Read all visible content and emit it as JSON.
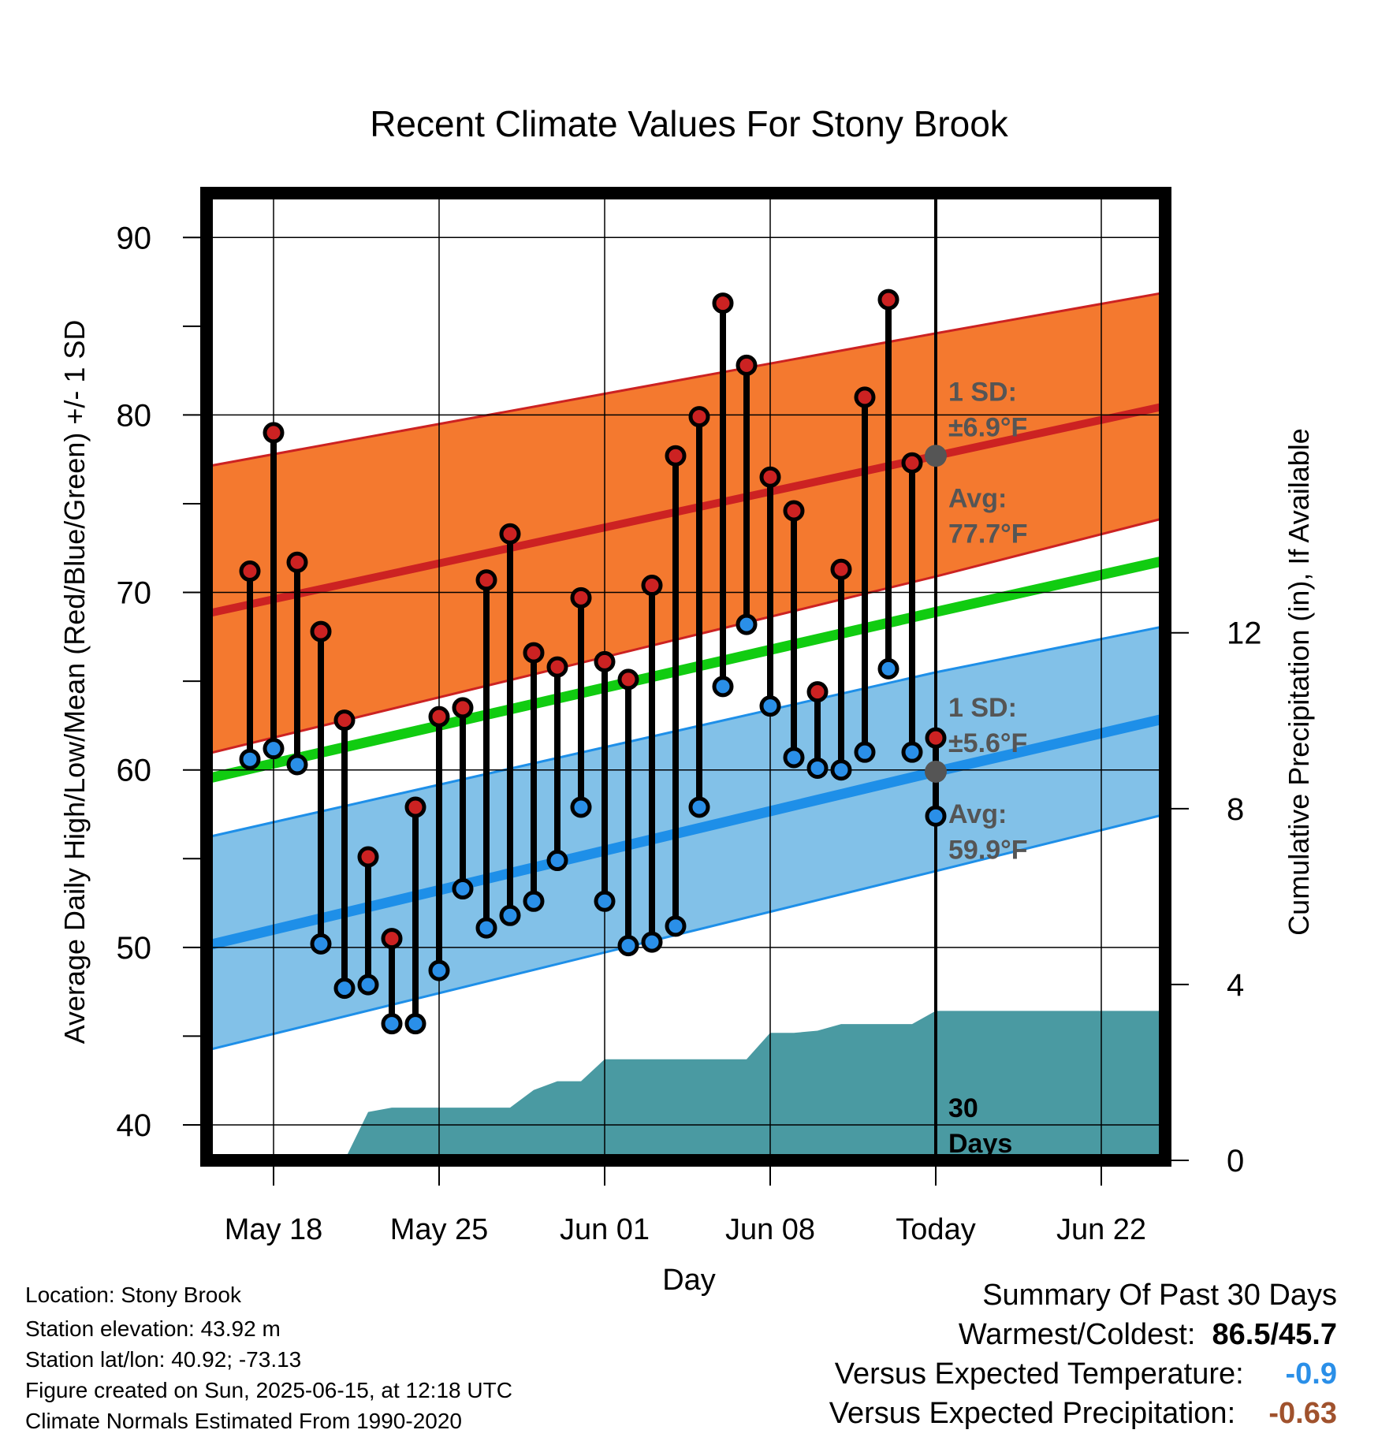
{
  "chart_data": {
    "type": "line",
    "title": "Recent Climate Values For Stony Brook",
    "xlabel": "Day",
    "ylabel": "Average Daily High/Low/Mean (Red/Blue/Green) +/- 1 SD",
    "y2label": "Cumulative Precipitation (in), If Available",
    "ylim": [
      38,
      92.5
    ],
    "y2lim": [
      0,
      22
    ],
    "y_ticks": [
      "40",
      "50",
      "60",
      "70",
      "80",
      "90"
    ],
    "y2_ticks": [
      "0",
      "4",
      "8",
      "12"
    ],
    "x_ticks": [
      "May 18",
      "May 25",
      "Jun 01",
      "Jun 08",
      "Today",
      "Jun 22"
    ],
    "x_dates": [
      "May 16",
      "May 17",
      "May 18",
      "May 19",
      "May 20",
      "May 21",
      "May 22",
      "May 23",
      "May 24",
      "May 25",
      "May 26",
      "May 27",
      "May 28",
      "May 29",
      "May 30",
      "May 31",
      "Jun 01",
      "Jun 02",
      "Jun 03",
      "Jun 04",
      "Jun 05",
      "Jun 06",
      "Jun 07",
      "Jun 08",
      "Jun 09",
      "Jun 10",
      "Jun 11",
      "Jun 12",
      "Jun 13",
      "Jun 14",
      "Jun 15",
      "Jun 16",
      "Jun 17",
      "Jun 18",
      "Jun 19",
      "Jun 20",
      "Jun 21",
      "Jun 22",
      "Jun 23",
      "Jun 24",
      "Jun 25"
    ],
    "today_date": "Jun 15",
    "grid": true,
    "series": [
      {
        "name": "High",
        "dates": [
          "May 17",
          "May 18",
          "May 19",
          "May 20",
          "May 21",
          "May 22",
          "May 23",
          "May 24",
          "May 25",
          "May 26",
          "May 27",
          "May 28",
          "May 29",
          "May 30",
          "May 31",
          "Jun 01",
          "Jun 02",
          "Jun 03",
          "Jun 04",
          "Jun 05",
          "Jun 06",
          "Jun 07",
          "Jun 08",
          "Jun 09",
          "Jun 10",
          "Jun 11",
          "Jun 12",
          "Jun 13",
          "Jun 14",
          "Jun 15"
        ],
        "values": [
          71.2,
          79.0,
          71.7,
          67.8,
          62.8,
          55.1,
          50.5,
          57.9,
          63.0,
          63.5,
          70.7,
          73.3,
          66.6,
          65.8,
          69.7,
          66.1,
          65.1,
          70.4,
          77.7,
          79.9,
          86.3,
          82.8,
          76.5,
          74.6,
          64.4,
          71.3,
          81.0,
          86.5,
          77.3,
          61.8
        ]
      },
      {
        "name": "Low",
        "dates": [
          "May 17",
          "May 18",
          "May 19",
          "May 20",
          "May 21",
          "May 22",
          "May 23",
          "May 24",
          "May 25",
          "May 26",
          "May 27",
          "May 28",
          "May 29",
          "May 30",
          "May 31",
          "Jun 01",
          "Jun 02",
          "Jun 03",
          "Jun 04",
          "Jun 05",
          "Jun 06",
          "Jun 07",
          "Jun 08",
          "Jun 09",
          "Jun 10",
          "Jun 11",
          "Jun 12",
          "Jun 13",
          "Jun 14",
          "Jun 15"
        ],
        "values": [
          60.6,
          61.2,
          60.3,
          50.2,
          47.7,
          47.9,
          45.7,
          45.7,
          48.7,
          53.3,
          51.1,
          51.8,
          52.6,
          54.9,
          57.9,
          52.6,
          50.1,
          50.3,
          51.2,
          57.9,
          64.7,
          68.2,
          63.6,
          60.7,
          60.1,
          60.0,
          61.0,
          65.7,
          61.0,
          57.4
        ]
      }
    ],
    "normals": {
      "dates": [
        "May 16",
        "Jun 15",
        "Jun 25"
      ],
      "avg_high": [
        68.8,
        77.7,
        80.5
      ],
      "high_upper": [
        77.1,
        84.6,
        86.9
      ],
      "high_lower": [
        60.9,
        70.9,
        74.2
      ],
      "avg_low": [
        50.1,
        59.9,
        62.9
      ],
      "low_upper": [
        56.2,
        65.5,
        68.1
      ],
      "low_lower": [
        44.2,
        54.3,
        57.5
      ],
      "avg_mean": [
        59.5,
        68.9,
        71.8
      ]
    },
    "precipitation": {
      "dates": [
        "May 16",
        "May 21",
        "May 22",
        "May 23",
        "May 24",
        "May 25",
        "May 26",
        "May 27",
        "May 28",
        "May 29",
        "May 30",
        "May 31",
        "Jun 01",
        "Jun 02",
        "Jun 03",
        "Jun 04",
        "Jun 05",
        "Jun 06",
        "Jun 07",
        "Jun 08",
        "Jun 09",
        "Jun 10",
        "Jun 11",
        "Jun 12",
        "Jun 13",
        "Jun 14",
        "Jun 15",
        "Jun 25"
      ],
      "values": [
        0,
        0,
        1.1,
        1.2,
        1.2,
        1.2,
        1.2,
        1.2,
        1.2,
        1.6,
        1.8,
        1.8,
        2.3,
        2.3,
        2.3,
        2.3,
        2.3,
        2.3,
        2.3,
        2.9,
        2.9,
        2.95,
        3.1,
        3.1,
        3.1,
        3.1,
        3.4,
        3.4
      ]
    },
    "annotations": {
      "high_sd": "1 SD:",
      "high_sd_value": "±6.9°F",
      "high_avg": "Avg:",
      "high_avg_value": "77.7°F",
      "low_sd": "1 SD:",
      "low_sd_value": "±5.6°F",
      "low_avg": "Avg:",
      "low_avg_value": "59.9°F",
      "days_line1": "30",
      "days_line2": "Days"
    },
    "colors": {
      "high_band": "#f4792f",
      "high_line": "#cc2222",
      "low_band": "#82c1e8",
      "low_line": "#1e8fe8",
      "mean_line": "#11cc11",
      "precip": "#4a9aa2",
      "high_dot": "#cc2222",
      "low_dot": "#2a8fe8",
      "annotation_text": "#555555"
    }
  },
  "info": {
    "location": "Location: Stony Brook",
    "elevation": "Station elevation: 43.92 m",
    "latlon": "Station lat/lon: 40.92; -73.13",
    "created": "Figure created on Sun, 2025-06-15, at 12:18 UTC",
    "normals": "Climate Normals Estimated From 1990-2020"
  },
  "summary": {
    "title": "Summary Of Past 30 Days",
    "warmest_label": "Warmest/Coldest:",
    "warmest_value": "86.5/45.7",
    "temp_label": "Versus Expected Temperature:",
    "temp_value": "-0.9",
    "temp_color": "#2a8fe8",
    "precip_label": "Versus Expected Precipitation:",
    "precip_value": "-0.63",
    "precip_color": "#a0522d"
  }
}
